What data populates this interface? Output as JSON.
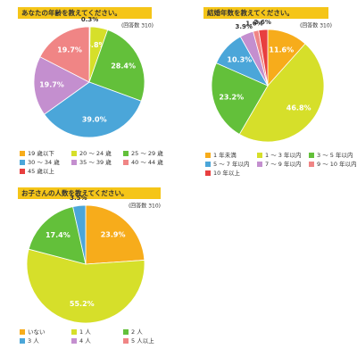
{
  "chart_data": [
    {
      "type": "pie",
      "title": "あなたの年齢を教えてください。",
      "note": "(回答数 310)",
      "categories": [
        "19 歳以下",
        "20 ～ 24 歳",
        "25 ～ 29 歳",
        "30 ～ 34 歳",
        "35 ～ 39 歳",
        "40 ～ 44 歳",
        "45 歳以上"
      ],
      "values": [
        0.3,
        5.8,
        28.4,
        39.0,
        19.7,
        19.7,
        null
      ],
      "value_labels": [
        "0.3%",
        "5.8%",
        "28.4%",
        "39.0%",
        "19.7%",
        "19.7%",
        null
      ],
      "colors": [
        "#f7ac1b",
        "#d6df2a",
        "#63c03a",
        "#4ba6d9",
        "#c48fcf",
        "#f08585",
        "#e83f3f"
      ]
    },
    {
      "type": "pie",
      "title": "結婚年数を教えてください。",
      "note": "(回答数 310)",
      "categories": [
        "1 年未満",
        "1 ～ 3 年以内",
        "3 ～ 5 年以内",
        "5 ～ 7 年以内",
        "7 ～ 9 年以内",
        "9 ～ 10 年以内",
        "10 年以上"
      ],
      "values": [
        11.6,
        46.8,
        23.2,
        10.3,
        3.9,
        1.6,
        2.6
      ],
      "value_labels": [
        "11.6%",
        "46.8%",
        "23.2%",
        "10.3%",
        "3.9%",
        "1.6%",
        "2.6%"
      ],
      "colors": [
        "#f7ac1b",
        "#d6df2a",
        "#63c03a",
        "#4ba6d9",
        "#c48fcf",
        "#f08585",
        "#e83f3f"
      ]
    },
    {
      "type": "pie",
      "title": "お子さんの人数を教えてください。",
      "note": "(回答数 310)",
      "categories": [
        "いない",
        "1 人",
        "2 人",
        "3 人",
        "4 人",
        "5 人以上"
      ],
      "values": [
        23.9,
        55.2,
        17.4,
        3.5,
        null,
        null
      ],
      "value_labels": [
        "23.9%",
        "55.2%",
        "17.4%",
        "3.5%",
        null,
        null
      ],
      "colors": [
        "#f7ac1b",
        "#d6df2a",
        "#63c03a",
        "#4ba6d9",
        "#c48fcf",
        "#f08585"
      ]
    }
  ]
}
